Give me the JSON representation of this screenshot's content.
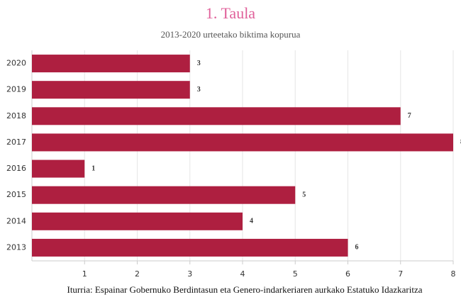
{
  "chart_data": {
    "type": "bar",
    "orientation": "horizontal",
    "title": "1. Taula",
    "subtitle": "2013-2020 urteetako biktima kopurua",
    "source": "Iturria: Espainar Gobernuko Berdintasun eta Genero-indarkeriaren aurkako Estatuko Idazkaritza",
    "categories": [
      "2020",
      "2019",
      "2018",
      "2017",
      "2016",
      "2015",
      "2014",
      "2013"
    ],
    "values": [
      3,
      3,
      7,
      8,
      1,
      5,
      4,
      6
    ],
    "color": "#ae1f40",
    "xlim": [
      0,
      8
    ],
    "xticks": [
      1,
      2,
      3,
      4,
      5,
      6,
      7,
      8
    ],
    "grid": true
  }
}
